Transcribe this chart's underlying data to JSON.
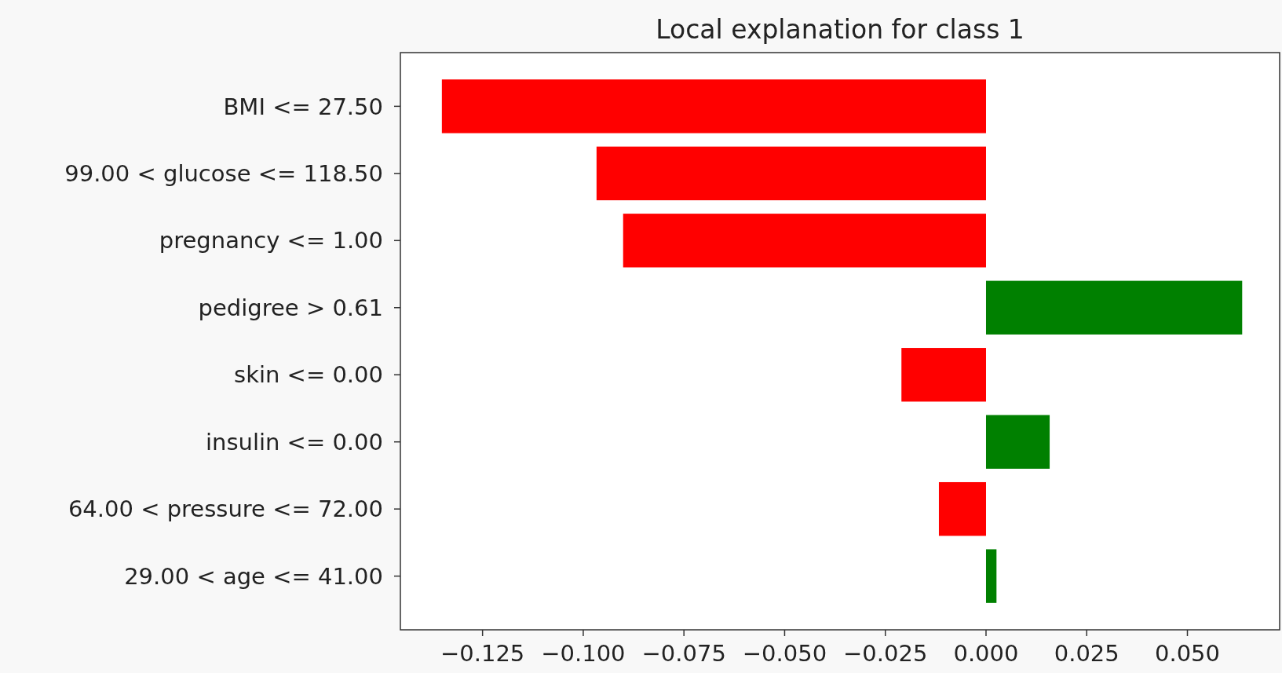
{
  "chart_data": {
    "type": "bar",
    "orientation": "horizontal",
    "title": "Local explanation for class 1",
    "categories": [
      "BMI <= 27.50",
      "99.00 < glucose <= 118.50",
      "pregnancy <= 1.00",
      "pedigree > 0.61",
      "skin <= 0.00",
      "insulin <= 0.00",
      "64.00 < pressure <= 72.00",
      "29.00 < age <= 41.00"
    ],
    "values": [
      -0.1351,
      -0.0967,
      -0.0901,
      0.0636,
      -0.021,
      0.0158,
      -0.0117,
      0.0026
    ],
    "colors": [
      "#ff0000",
      "#ff0000",
      "#ff0000",
      "#008000",
      "#ff0000",
      "#008000",
      "#ff0000",
      "#008000"
    ],
    "xlim": [
      -0.1454,
      0.0729
    ],
    "xticks": [
      {
        "value": -0.125,
        "label": "−0.125"
      },
      {
        "value": -0.1,
        "label": "−0.100"
      },
      {
        "value": -0.075,
        "label": "−0.075"
      },
      {
        "value": -0.05,
        "label": "−0.050"
      },
      {
        "value": -0.025,
        "label": "−0.025"
      },
      {
        "value": 0,
        "label": "0.000"
      },
      {
        "value": 0.025,
        "label": "0.025"
      },
      {
        "value": 0.05,
        "label": "0.050"
      }
    ]
  }
}
